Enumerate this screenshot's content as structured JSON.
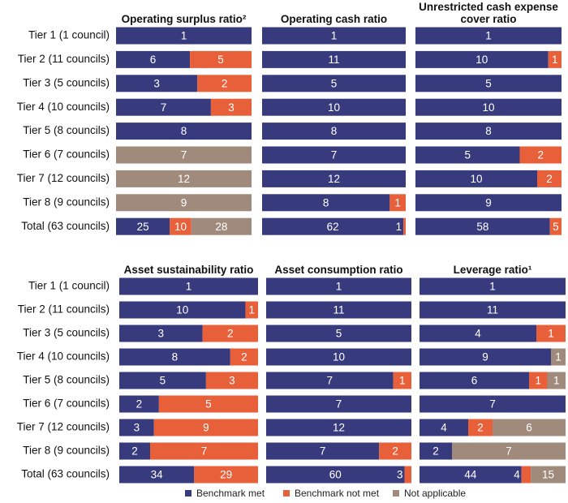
{
  "chart_data": {
    "type": "bar",
    "stacked": true,
    "percent": true,
    "legend": {
      "position": "bottom",
      "items": [
        {
          "name": "Benchmark met",
          "color": "#383a7e"
        },
        {
          "name": "Benchmark not met",
          "color": "#e8603a"
        },
        {
          "name": "Not applicable",
          "color": "#a08a7c"
        }
      ]
    },
    "groups": [
      {
        "categories": [
          "Tier 1 (1 council)",
          "Tier 2 (11 councils)",
          "Tier 3 (5 councils)",
          "Tier 4 (10 councils)",
          "Tier 5 (8 councils)",
          "Tier 6 (7 councils)",
          "Tier 7 (12 councils)",
          "Tier 8 (9 councils)",
          "Total (63 councils)"
        ],
        "panels": [
          {
            "title": "Operating surplus ratio²",
            "series": [
              {
                "values": [
                  1,
                  6,
                  3,
                  7,
                  8,
                  null,
                  null,
                  null,
                  25
                ]
              },
              {
                "values": [
                  null,
                  5,
                  2,
                  3,
                  null,
                  null,
                  null,
                  null,
                  10
                ]
              },
              {
                "values": [
                  null,
                  null,
                  null,
                  null,
                  null,
                  7,
                  12,
                  9,
                  28
                ]
              }
            ]
          },
          {
            "title": "Operating cash ratio",
            "series": [
              {
                "values": [
                  1,
                  11,
                  5,
                  10,
                  8,
                  7,
                  12,
                  8,
                  62
                ]
              },
              {
                "values": [
                  null,
                  null,
                  null,
                  null,
                  null,
                  null,
                  null,
                  1,
                  1
                ]
              },
              {
                "values": [
                  null,
                  null,
                  null,
                  null,
                  null,
                  null,
                  null,
                  null,
                  null
                ]
              }
            ]
          },
          {
            "title": "Unrestricted cash expense cover ratio",
            "series": [
              {
                "values": [
                  1,
                  10,
                  5,
                  10,
                  8,
                  5,
                  10,
                  9,
                  58
                ]
              },
              {
                "values": [
                  null,
                  1,
                  null,
                  null,
                  null,
                  2,
                  2,
                  null,
                  5
                ]
              },
              {
                "values": [
                  null,
                  null,
                  null,
                  null,
                  null,
                  null,
                  null,
                  null,
                  null
                ]
              }
            ]
          }
        ]
      },
      {
        "categories": [
          "Tier 1 (1 council)",
          "Tier 2 (11 councils)",
          "Tier 3 (5 councils)",
          "Tier 4 (10 councils)",
          "Tier 5 (8 councils)",
          "Tier 6 (7 councils)",
          "Tier 7 (12 councils)",
          "Tier 8 (9 councils)",
          "Total (63 councils)"
        ],
        "panels": [
          {
            "title": "Asset sustainability ratio",
            "series": [
              {
                "values": [
                  1,
                  10,
                  3,
                  8,
                  5,
                  2,
                  3,
                  2,
                  34
                ]
              },
              {
                "values": [
                  null,
                  1,
                  2,
                  2,
                  3,
                  5,
                  9,
                  7,
                  29
                ]
              },
              {
                "values": [
                  null,
                  null,
                  null,
                  null,
                  null,
                  null,
                  null,
                  null,
                  null
                ]
              }
            ]
          },
          {
            "title": "Asset consumption ratio",
            "series": [
              {
                "values": [
                  1,
                  11,
                  5,
                  10,
                  7,
                  7,
                  12,
                  7,
                  60
                ]
              },
              {
                "values": [
                  null,
                  null,
                  null,
                  null,
                  1,
                  null,
                  null,
                  2,
                  3
                ]
              },
              {
                "values": [
                  null,
                  null,
                  null,
                  null,
                  null,
                  null,
                  null,
                  null,
                  null
                ]
              }
            ]
          },
          {
            "title": "Leverage ratio¹",
            "series": [
              {
                "values": [
                  1,
                  11,
                  4,
                  9,
                  6,
                  7,
                  4,
                  2,
                  44
                ]
              },
              {
                "values": [
                  null,
                  null,
                  1,
                  null,
                  1,
                  null,
                  2,
                  null,
                  4
                ]
              },
              {
                "values": [
                  null,
                  null,
                  null,
                  1,
                  1,
                  null,
                  6,
                  7,
                  15
                ]
              }
            ]
          }
        ]
      }
    ]
  }
}
